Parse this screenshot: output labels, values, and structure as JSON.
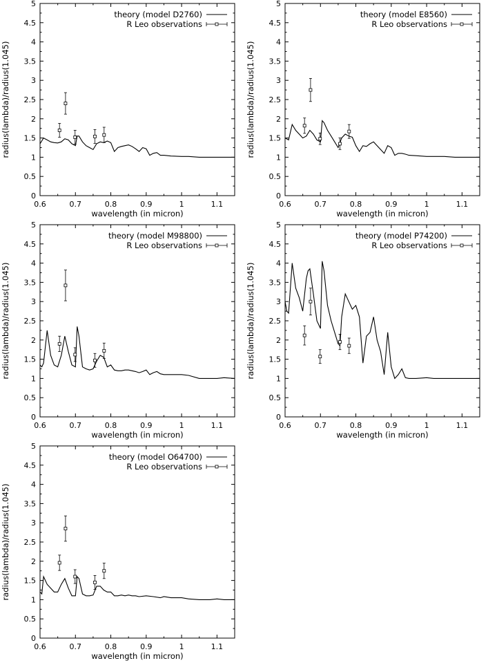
{
  "chart_data": [
    {
      "type": "line",
      "xlabel": "wavelength (in micron)",
      "ylabel": "radius(lambda)/radius(1.045)",
      "xlim": [
        0.6,
        1.15
      ],
      "ylim": [
        0,
        5
      ],
      "xticks": [
        "0.6",
        "0.7",
        "0.8",
        "0.9",
        "1",
        "1.1"
      ],
      "yticks": [
        "0",
        "0.5",
        "1",
        "1.5",
        "2",
        "2.5",
        "3",
        "3.5",
        "4",
        "4.5",
        "5"
      ],
      "legend_position": "top-right",
      "series": [
        {
          "name": "theory (model D2760)",
          "kind": "line",
          "x": [
            0.6,
            0.61,
            0.62,
            0.63,
            0.64,
            0.65,
            0.66,
            0.67,
            0.68,
            0.69,
            0.7,
            0.705,
            0.71,
            0.72,
            0.73,
            0.74,
            0.75,
            0.76,
            0.77,
            0.78,
            0.79,
            0.8,
            0.81,
            0.82,
            0.83,
            0.84,
            0.85,
            0.86,
            0.87,
            0.88,
            0.89,
            0.9,
            0.91,
            0.92,
            0.93,
            0.94,
            0.95,
            0.97,
            1.0,
            1.02,
            1.05,
            1.08,
            1.1,
            1.12,
            1.15
          ],
          "y": [
            1.35,
            1.5,
            1.45,
            1.4,
            1.38,
            1.37,
            1.4,
            1.48,
            1.45,
            1.35,
            1.3,
            1.55,
            1.55,
            1.4,
            1.3,
            1.25,
            1.2,
            1.35,
            1.4,
            1.38,
            1.42,
            1.38,
            1.15,
            1.25,
            1.28,
            1.3,
            1.32,
            1.28,
            1.22,
            1.15,
            1.25,
            1.22,
            1.05,
            1.1,
            1.12,
            1.05,
            1.05,
            1.03,
            1.02,
            1.02,
            1.0,
            1.0,
            1.0,
            1.0,
            1.0
          ]
        },
        {
          "name": "R Leo observations",
          "kind": "points",
          "x": [
            0.655,
            0.672,
            0.699,
            0.755,
            0.781
          ],
          "y": [
            1.7,
            2.4,
            1.52,
            1.54,
            1.58
          ],
          "err": [
            0.18,
            0.28,
            0.18,
            0.18,
            0.2
          ]
        }
      ]
    },
    {
      "type": "line",
      "xlabel": "wavelength (in micron)",
      "ylabel": "radius(lambda)/radius(1.045)",
      "xlim": [
        0.6,
        1.15
      ],
      "ylim": [
        0,
        5
      ],
      "xticks": [
        "0.6",
        "0.7",
        "0.8",
        "0.9",
        "1",
        "1.1"
      ],
      "yticks": [
        "0",
        "0.5",
        "1",
        "1.5",
        "2",
        "2.5",
        "3",
        "3.5",
        "4",
        "4.5",
        "5"
      ],
      "legend_position": "top-right",
      "series": [
        {
          "name": "theory (model E8560)",
          "kind": "line",
          "x": [
            0.6,
            0.61,
            0.62,
            0.63,
            0.64,
            0.65,
            0.66,
            0.67,
            0.68,
            0.69,
            0.7,
            0.705,
            0.71,
            0.72,
            0.73,
            0.74,
            0.75,
            0.76,
            0.77,
            0.78,
            0.79,
            0.8,
            0.81,
            0.82,
            0.83,
            0.84,
            0.85,
            0.86,
            0.87,
            0.88,
            0.89,
            0.9,
            0.91,
            0.92,
            0.93,
            0.94,
            0.95,
            0.97,
            1.0,
            1.02,
            1.05,
            1.08,
            1.1,
            1.12,
            1.15
          ],
          "y": [
            1.5,
            1.45,
            1.85,
            1.7,
            1.6,
            1.5,
            1.55,
            1.7,
            1.6,
            1.45,
            1.4,
            1.95,
            1.9,
            1.7,
            1.55,
            1.4,
            1.25,
            1.5,
            1.6,
            1.55,
            1.52,
            1.3,
            1.15,
            1.3,
            1.28,
            1.35,
            1.4,
            1.3,
            1.2,
            1.1,
            1.3,
            1.25,
            1.05,
            1.1,
            1.1,
            1.08,
            1.05,
            1.04,
            1.02,
            1.02,
            1.02,
            1.0,
            1.0,
            1.0,
            1.0
          ]
        },
        {
          "name": "R Leo observations",
          "kind": "points",
          "x": [
            0.655,
            0.672,
            0.699,
            0.755,
            0.781
          ],
          "y": [
            1.82,
            2.75,
            1.48,
            1.35,
            1.67
          ],
          "err": [
            0.2,
            0.3,
            0.15,
            0.15,
            0.18
          ]
        }
      ]
    },
    {
      "type": "line",
      "xlabel": "wavelength (in micron)",
      "ylabel": "radius(lambda)/radius(1.045)",
      "xlim": [
        0.6,
        1.15
      ],
      "ylim": [
        0,
        5
      ],
      "xticks": [
        "0.6",
        "0.7",
        "0.8",
        "0.9",
        "1",
        "1.1"
      ],
      "yticks": [
        "0",
        "0.5",
        "1",
        "1.5",
        "2",
        "2.5",
        "3",
        "3.5",
        "4",
        "4.5",
        "5"
      ],
      "legend_position": "top-right",
      "series": [
        {
          "name": "theory (model M98800)",
          "kind": "line",
          "x": [
            0.6,
            0.605,
            0.61,
            0.62,
            0.63,
            0.64,
            0.65,
            0.66,
            0.67,
            0.68,
            0.69,
            0.7,
            0.705,
            0.71,
            0.72,
            0.73,
            0.74,
            0.75,
            0.76,
            0.77,
            0.78,
            0.79,
            0.8,
            0.81,
            0.82,
            0.83,
            0.84,
            0.85,
            0.86,
            0.87,
            0.88,
            0.89,
            0.9,
            0.91,
            0.92,
            0.93,
            0.94,
            0.95,
            0.97,
            1.0,
            1.02,
            1.05,
            1.08,
            1.1,
            1.12,
            1.15
          ],
          "y": [
            1.35,
            1.3,
            1.4,
            2.25,
            1.6,
            1.35,
            1.3,
            1.6,
            2.1,
            1.7,
            1.35,
            1.3,
            2.35,
            2.1,
            1.3,
            1.25,
            1.22,
            1.25,
            1.45,
            1.6,
            1.55,
            1.3,
            1.35,
            1.22,
            1.2,
            1.2,
            1.22,
            1.22,
            1.2,
            1.18,
            1.15,
            1.18,
            1.22,
            1.1,
            1.15,
            1.18,
            1.12,
            1.1,
            1.1,
            1.1,
            1.08,
            1.0,
            1.0,
            1.0,
            1.02,
            1.0
          ]
        },
        {
          "name": "R Leo observations",
          "kind": "points",
          "x": [
            0.655,
            0.672,
            0.699,
            0.755,
            0.781
          ],
          "y": [
            1.9,
            3.42,
            1.62,
            1.47,
            1.72
          ],
          "err": [
            0.2,
            0.4,
            0.18,
            0.18,
            0.2
          ]
        }
      ]
    },
    {
      "type": "line",
      "xlabel": "wavelength (in micron)",
      "ylabel": "radius(lambda)/radius(1.045)",
      "xlim": [
        0.6,
        1.15
      ],
      "ylim": [
        0,
        5
      ],
      "xticks": [
        "0.6",
        "0.7",
        "0.8",
        "0.9",
        "1",
        "1.1"
      ],
      "yticks": [
        "0",
        "0.5",
        "1",
        "1.5",
        "2",
        "2.5",
        "3",
        "3.5",
        "4",
        "4.5",
        "5"
      ],
      "legend_position": "top-right",
      "series": [
        {
          "name": "theory (model P74200)",
          "kind": "line",
          "x": [
            0.6,
            0.605,
            0.61,
            0.62,
            0.63,
            0.64,
            0.65,
            0.66,
            0.665,
            0.67,
            0.68,
            0.69,
            0.7,
            0.705,
            0.71,
            0.72,
            0.73,
            0.74,
            0.75,
            0.755,
            0.76,
            0.77,
            0.78,
            0.79,
            0.8,
            0.81,
            0.82,
            0.83,
            0.84,
            0.85,
            0.86,
            0.87,
            0.88,
            0.89,
            0.9,
            0.91,
            0.92,
            0.93,
            0.94,
            0.95,
            0.97,
            1.0,
            1.02,
            1.05,
            1.08,
            1.1,
            1.12,
            1.15
          ],
          "y": [
            3.0,
            2.75,
            2.7,
            4.0,
            3.35,
            3.1,
            2.75,
            3.6,
            3.8,
            3.85,
            3.2,
            2.5,
            2.3,
            4.05,
            3.8,
            2.9,
            2.5,
            2.2,
            1.9,
            1.85,
            2.6,
            3.2,
            3.0,
            2.8,
            2.9,
            2.6,
            1.4,
            2.1,
            2.2,
            2.6,
            2.0,
            1.7,
            1.1,
            2.2,
            1.3,
            1.0,
            1.1,
            1.25,
            1.02,
            1.0,
            1.0,
            1.02,
            1.0,
            1.0,
            1.0,
            1.0,
            1.0,
            1.0
          ]
        },
        {
          "name": "R Leo observations",
          "kind": "points",
          "x": [
            0.655,
            0.672,
            0.699,
            0.755,
            0.781
          ],
          "y": [
            2.12,
            3.0,
            1.57,
            1.95,
            1.85
          ],
          "err": [
            0.25,
            0.35,
            0.18,
            0.2,
            0.2
          ]
        }
      ]
    },
    {
      "type": "line",
      "xlabel": "wavelength (in micron)",
      "ylabel": "radius(lambda)/radius(1.045)",
      "xlim": [
        0.6,
        1.15
      ],
      "ylim": [
        0,
        5
      ],
      "xticks": [
        "0.6",
        "0.7",
        "0.8",
        "0.9",
        "1",
        "1.1"
      ],
      "yticks": [
        "0",
        "0.5",
        "1",
        "1.5",
        "2",
        "2.5",
        "3",
        "3.5",
        "4",
        "4.5",
        "5"
      ],
      "legend_position": "top-right",
      "series": [
        {
          "name": "theory (model O64700)",
          "kind": "line",
          "x": [
            0.6,
            0.605,
            0.61,
            0.62,
            0.63,
            0.64,
            0.65,
            0.66,
            0.67,
            0.68,
            0.69,
            0.7,
            0.705,
            0.71,
            0.72,
            0.73,
            0.74,
            0.75,
            0.76,
            0.77,
            0.78,
            0.79,
            0.8,
            0.81,
            0.82,
            0.83,
            0.84,
            0.85,
            0.86,
            0.87,
            0.88,
            0.9,
            0.92,
            0.94,
            0.95,
            0.97,
            1.0,
            1.02,
            1.05,
            1.08,
            1.1,
            1.12,
            1.15
          ],
          "y": [
            1.2,
            1.15,
            1.6,
            1.4,
            1.3,
            1.2,
            1.2,
            1.4,
            1.55,
            1.3,
            1.1,
            1.1,
            1.6,
            1.55,
            1.15,
            1.1,
            1.1,
            1.12,
            1.35,
            1.35,
            1.25,
            1.2,
            1.2,
            1.1,
            1.1,
            1.12,
            1.1,
            1.12,
            1.1,
            1.1,
            1.08,
            1.1,
            1.08,
            1.05,
            1.08,
            1.05,
            1.05,
            1.02,
            1.0,
            1.0,
            1.02,
            1.0,
            1.0
          ]
        },
        {
          "name": "R Leo observations",
          "kind": "points",
          "x": [
            0.655,
            0.672,
            0.699,
            0.755,
            0.781
          ],
          "y": [
            1.96,
            2.85,
            1.6,
            1.45,
            1.75
          ],
          "err": [
            0.2,
            0.33,
            0.18,
            0.18,
            0.2
          ]
        }
      ]
    }
  ]
}
